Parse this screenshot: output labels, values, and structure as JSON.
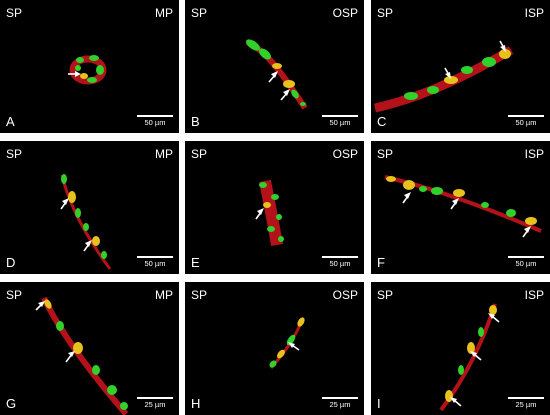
{
  "panels": [
    {
      "id": "A",
      "left": "SP",
      "right": "MP",
      "scale": "50 µm"
    },
    {
      "id": "B",
      "left": "SP",
      "right": "OSP",
      "scale": "50 µm"
    },
    {
      "id": "C",
      "left": "SP",
      "right": "ISP",
      "scale": "50 µm"
    },
    {
      "id": "D",
      "left": "SP",
      "right": "MP",
      "scale": "50 µm"
    },
    {
      "id": "E",
      "left": "SP",
      "right": "OSP",
      "scale": "50 µm"
    },
    {
      "id": "F",
      "left": "SP",
      "right": "ISP",
      "scale": "50 µm"
    },
    {
      "id": "G",
      "left": "SP",
      "right": "MP",
      "scale": "25 µm"
    },
    {
      "id": "H",
      "left": "SP",
      "right": "OSP",
      "scale": "25 µm"
    },
    {
      "id": "I",
      "left": "SP",
      "right": "ISP",
      "scale": "25 µm"
    }
  ],
  "colors": {
    "background": "#000000",
    "green": "#2fd12a",
    "red": "#b3121a",
    "yellow": "#e8c21c",
    "label": "#ffffff"
  }
}
